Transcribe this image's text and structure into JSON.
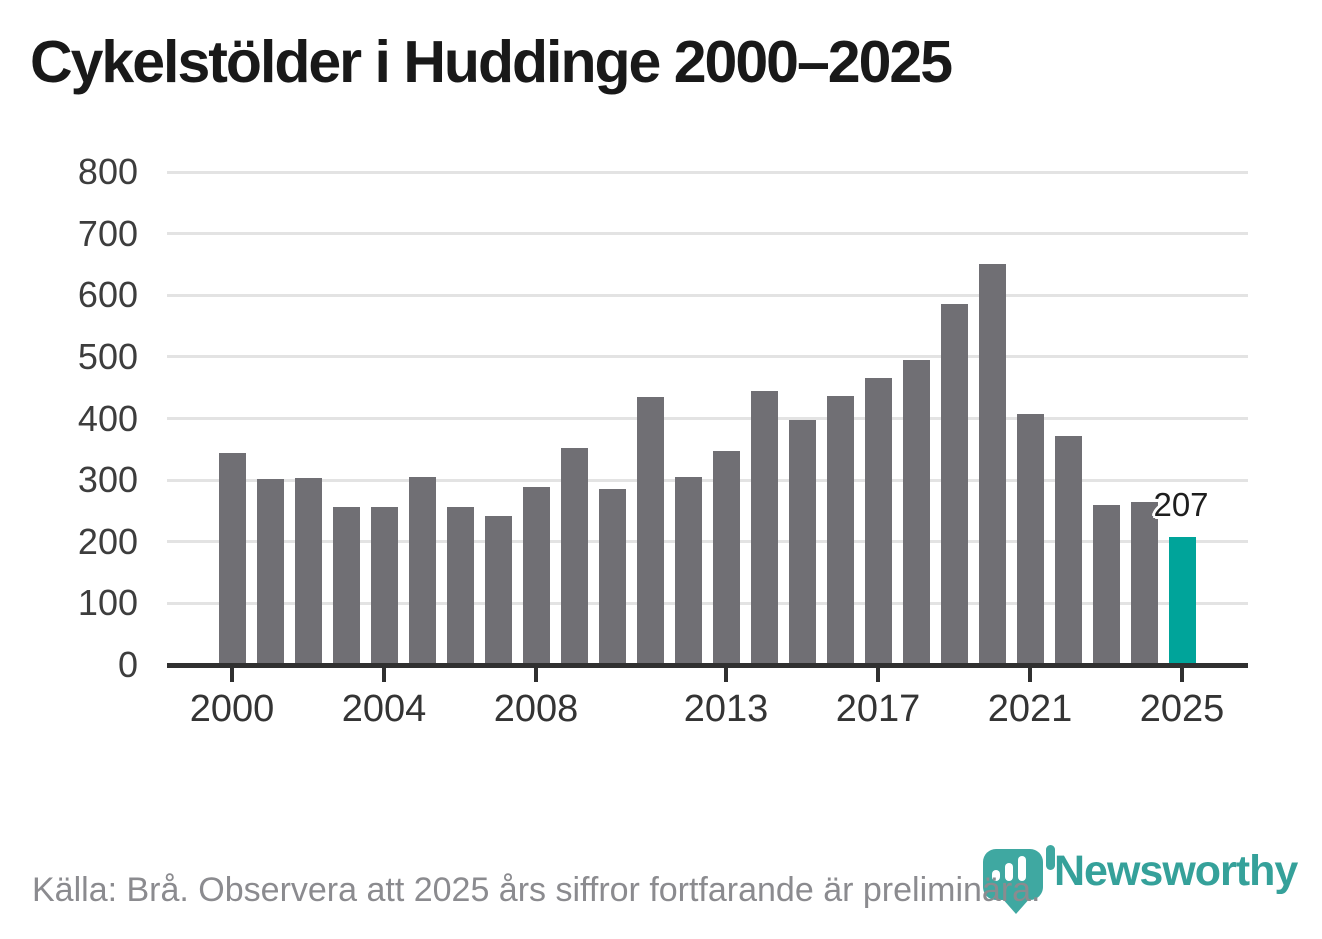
{
  "title": "Cykelstölder i Huddinge 2000–2025",
  "source_note": "Källa: Brå. Observera att 2025 års siffror fortfarande är preliminära.",
  "branding": {
    "wordmark": "Newsworthy",
    "logo_icon": "newsworthy-pin-barchart-icon"
  },
  "colors": {
    "background": "#ffffff",
    "bar": "#706f74",
    "highlight": "#00a49a",
    "gridline": "#e3e3e3",
    "axis": "#303030",
    "axis_label": "#3d3d3d",
    "title": "#191919",
    "source": "#8b8b8f",
    "annotation_text": "#1e1e1e",
    "brand_teal": "#35a19a"
  },
  "chart_data": {
    "type": "bar",
    "title": "Cykelstölder i Huddinge 2000–2025",
    "xlabel": "",
    "ylabel": "",
    "categories": [
      2000,
      2001,
      2002,
      2003,
      2004,
      2005,
      2006,
      2007,
      2008,
      2009,
      2010,
      2011,
      2012,
      2013,
      2014,
      2015,
      2016,
      2017,
      2018,
      2019,
      2020,
      2021,
      2022,
      2023,
      2024,
      2025
    ],
    "values": [
      344,
      302,
      304,
      256,
      256,
      305,
      256,
      241,
      289,
      352,
      286,
      435,
      305,
      348,
      444,
      397,
      436,
      465,
      495,
      586,
      650,
      407,
      372,
      260,
      265,
      207
    ],
    "highlight_category": 2025,
    "highlight_value_label": "207",
    "ylim": [
      0,
      800
    ],
    "yticks": [
      0,
      100,
      200,
      300,
      400,
      500,
      600,
      700,
      800
    ],
    "xtick_labels": [
      2000,
      2004,
      2008,
      2013,
      2017,
      2021,
      2025
    ],
    "grid": "horizontal",
    "legend": "none"
  }
}
